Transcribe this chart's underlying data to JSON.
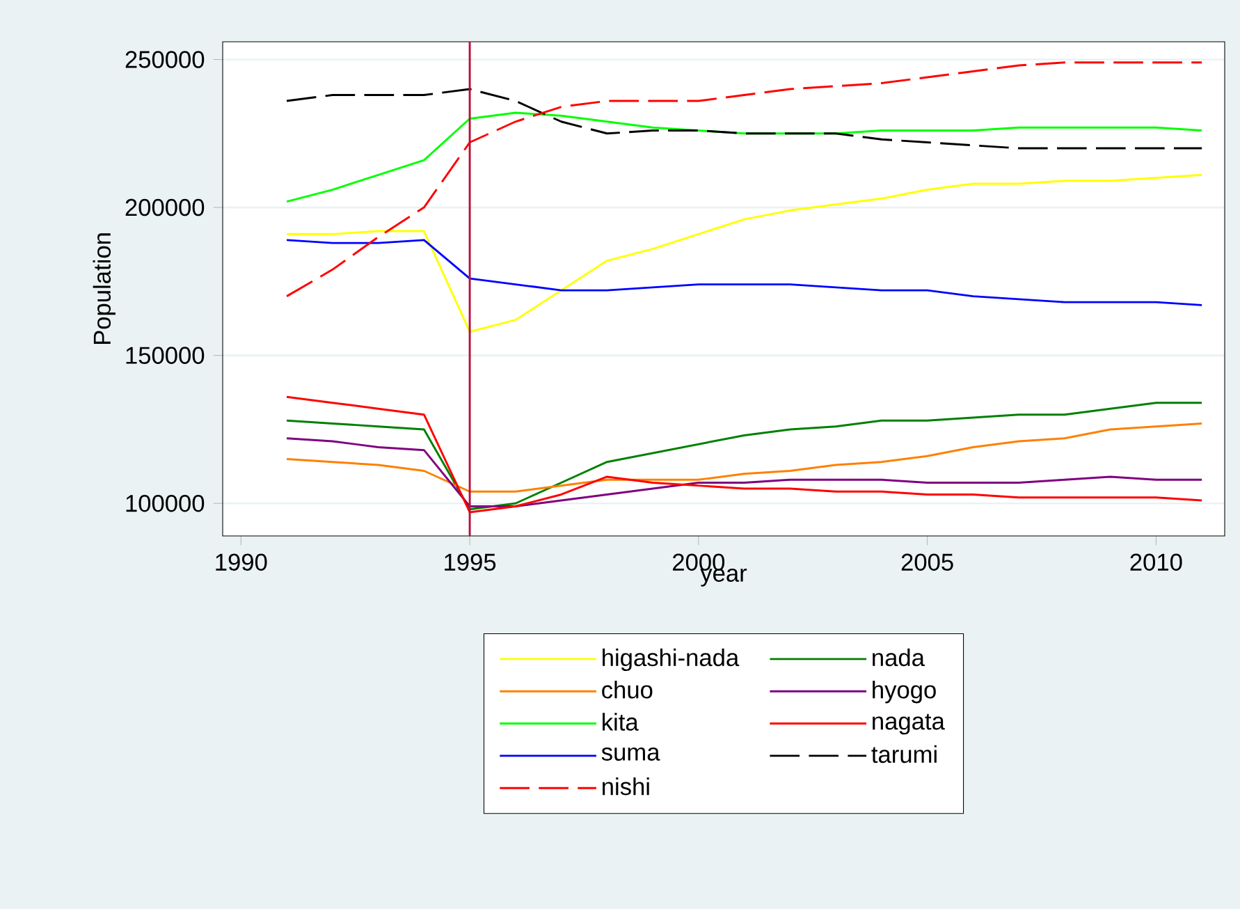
{
  "chart_data": {
    "type": "line",
    "xlabel": "year",
    "ylabel": "Population",
    "x": [
      1991,
      1992,
      1993,
      1994,
      1995,
      1996,
      1997,
      1998,
      1999,
      2000,
      2001,
      2002,
      2003,
      2004,
      2005,
      2006,
      2007,
      2008,
      2009,
      2010,
      2011
    ],
    "series": [
      {
        "name": "higashi-nada",
        "color": "#ffff00",
        "values": [
          191000,
          191000,
          192000,
          192000,
          158000,
          162000,
          172000,
          182000,
          186000,
          191000,
          196000,
          199000,
          201000,
          203000,
          206000,
          208000,
          208000,
          209000,
          209000,
          210000,
          211000
        ]
      },
      {
        "name": "nada",
        "color": "#008000",
        "values": [
          128000,
          127000,
          126000,
          125000,
          98000,
          100000,
          107000,
          114000,
          117000,
          120000,
          123000,
          125000,
          126000,
          128000,
          128000,
          129000,
          130000,
          130000,
          132000,
          134000,
          134000
        ]
      },
      {
        "name": "chuo",
        "color": "#ff8000",
        "values": [
          115000,
          114000,
          113000,
          111000,
          104000,
          104000,
          106000,
          108000,
          108000,
          108000,
          110000,
          111000,
          113000,
          114000,
          116000,
          119000,
          121000,
          122000,
          125000,
          126000,
          127000
        ]
      },
      {
        "name": "hyogo",
        "color": "#800080",
        "values": [
          122000,
          121000,
          119000,
          118000,
          99000,
          99000,
          101000,
          103000,
          105000,
          107000,
          107000,
          108000,
          108000,
          108000,
          107000,
          107000,
          107000,
          108000,
          109000,
          108000,
          108000
        ]
      },
      {
        "name": "kita",
        "color": "#00ff00",
        "values": [
          202000,
          206000,
          211000,
          216000,
          230000,
          232000,
          231000,
          229000,
          227000,
          226000,
          225000,
          225000,
          225000,
          226000,
          226000,
          226000,
          227000,
          227000,
          227000,
          227000,
          226000
        ]
      },
      {
        "name": "nagata",
        "color": "#ff0000",
        "values": [
          136000,
          134000,
          132000,
          130000,
          97000,
          99000,
          103000,
          109000,
          107000,
          106000,
          105000,
          105000,
          104000,
          104000,
          103000,
          103000,
          102000,
          102000,
          102000,
          102000,
          101000
        ]
      },
      {
        "name": "suma",
        "color": "#0000ff",
        "values": [
          189000,
          188000,
          188000,
          189000,
          176000,
          174000,
          172000,
          172000,
          173000,
          174000,
          174000,
          174000,
          173000,
          172000,
          172000,
          170000,
          169000,
          168000,
          168000,
          168000,
          167000
        ]
      },
      {
        "name": "tarumi",
        "color": "#000000",
        "line_style": "dashed",
        "values": [
          236000,
          238000,
          238000,
          238000,
          240000,
          236000,
          229000,
          225000,
          226000,
          226000,
          225000,
          225000,
          225000,
          223000,
          222000,
          221000,
          220000,
          220000,
          220000,
          220000,
          220000
        ]
      },
      {
        "name": "nishi",
        "color": "#ff0000",
        "line_style": "dashed",
        "values": [
          170000,
          179000,
          190000,
          200000,
          222000,
          229000,
          234000,
          236000,
          236000,
          236000,
          238000,
          240000,
          241000,
          242000,
          244000,
          246000,
          248000,
          249000,
          249000,
          249000,
          249000
        ]
      }
    ],
    "xlim": [
      1989.6,
      2011.5
    ],
    "ylim": [
      89000,
      256000
    ],
    "xticks": [
      1990,
      1995,
      2000,
      2005,
      2010
    ],
    "yticks": [
      100000,
      150000,
      200000,
      250000
    ],
    "ref_lines": [
      {
        "axis": "x",
        "value": 1995,
        "color": "#b8123c"
      }
    ],
    "grid": "y",
    "legend": "bottom",
    "marker": "none"
  }
}
